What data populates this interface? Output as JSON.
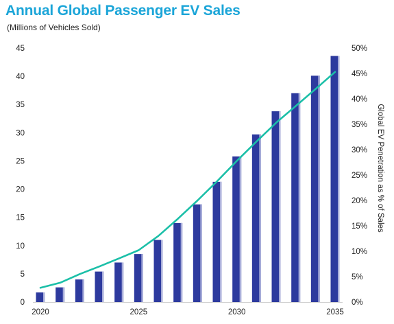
{
  "header": {
    "title": "Annual Global Passenger EV Sales",
    "subtitle": "(Millions of Vehicles Sold)"
  },
  "colors": {
    "title": "#1ba5d8",
    "bars": "#2d3a9e",
    "bar_highlight": "#c8cce8",
    "line": "#1bbfa8"
  },
  "chart_data": {
    "type": "bar",
    "title": "Annual Global Passenger EV Sales",
    "subtitle": "(Millions of Vehicles Sold)",
    "xlabel": "",
    "ylabel": "",
    "y2label": "Global EV Penetration as % of Sales",
    "x": [
      2020,
      2021,
      2022,
      2023,
      2024,
      2025,
      2026,
      2027,
      2028,
      2029,
      2030,
      2031,
      2032,
      2033,
      2034,
      2035
    ],
    "x_tick_labels": [
      "2020",
      "2025",
      "2030",
      "2035"
    ],
    "x_tick_values": [
      2020,
      2025,
      2030,
      2035
    ],
    "ylim": [
      0,
      45
    ],
    "y_tick_labels": [
      "0",
      "5",
      "10",
      "15",
      "20",
      "25",
      "30",
      "35",
      "40",
      "45"
    ],
    "y2lim": [
      0,
      50
    ],
    "y2_tick_labels": [
      "0%",
      "5%",
      "10%",
      "15%",
      "20%",
      "25%",
      "30%",
      "35%",
      "40%",
      "45%",
      "50%"
    ],
    "series": [
      {
        "type": "bar",
        "axis": "left",
        "values": [
          1.7,
          2.6,
          4.0,
          5.4,
          7.0,
          8.5,
          11.0,
          14.0,
          17.3,
          21.3,
          25.8,
          29.7,
          33.8,
          37.0,
          40.1,
          43.6
        ]
      },
      {
        "type": "line",
        "axis": "right",
        "values": [
          2.8,
          3.8,
          5.5,
          7.0,
          8.6,
          10.2,
          13.0,
          16.4,
          20.0,
          23.8,
          27.8,
          31.6,
          35.3,
          38.6,
          41.9,
          45.3
        ]
      }
    ],
    "grid": false,
    "legend": "none"
  }
}
